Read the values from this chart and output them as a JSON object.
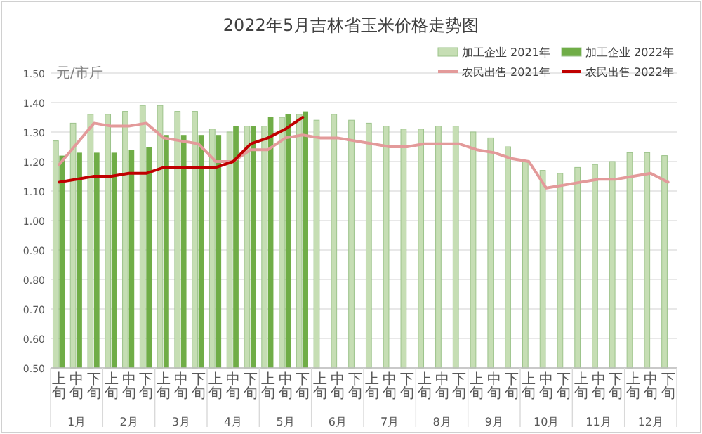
{
  "chart_data": {
    "type": "bar",
    "title": "2022年5月吉林省玉米价格走势图",
    "ylabel": "元/市斤",
    "categories": [
      "上旬",
      "中旬",
      "下旬",
      "上旬",
      "中旬",
      "下旬",
      "上旬",
      "中旬",
      "下旬",
      "上旬",
      "中旬",
      "下旬",
      "上旬",
      "中旬",
      "下旬",
      "上旬",
      "中旬",
      "下旬",
      "上旬",
      "中旬",
      "下旬",
      "上旬",
      "中旬",
      "下旬",
      "上旬",
      "中旬",
      "下旬",
      "上旬",
      "中旬",
      "下旬",
      "上旬",
      "中旬",
      "下旬",
      "上旬",
      "中旬",
      "下旬"
    ],
    "annotations": [
      "1月",
      "2月",
      "3月",
      "4月",
      "5月",
      "6月",
      "7月",
      "8月",
      "9月",
      "10月",
      "11月",
      "12月"
    ],
    "series": [
      {
        "name": "加工企业 2021年",
        "color": "#c6deb4",
        "values": [
          1.27,
          1.33,
          1.36,
          1.36,
          1.37,
          1.39,
          1.39,
          1.37,
          1.37,
          1.31,
          1.3,
          1.32,
          1.32,
          1.35,
          1.36,
          1.34,
          1.36,
          1.34,
          1.33,
          1.32,
          1.31,
          1.31,
          1.32,
          1.32,
          1.3,
          1.28,
          1.25,
          1.2,
          1.17,
          1.16,
          1.18,
          1.19,
          1.2,
          1.23,
          1.23,
          1.22
        ]
      },
      {
        "name": "加工企业 2022年",
        "color": "#70ad47",
        "values": [
          1.22,
          1.23,
          1.23,
          1.23,
          1.24,
          1.25,
          1.29,
          1.29,
          1.29,
          1.29,
          1.32,
          1.32,
          1.35,
          1.36,
          1.37,
          null,
          null,
          null,
          null,
          null,
          null,
          null,
          null,
          null,
          null,
          null,
          null,
          null,
          null,
          null,
          null,
          null,
          null,
          null,
          null,
          null
        ]
      },
      {
        "name": "农民出售 2021年",
        "type": "line",
        "color": "#e39a9a",
        "values": [
          1.19,
          1.26,
          1.33,
          1.32,
          1.32,
          1.33,
          1.28,
          1.27,
          1.26,
          1.2,
          1.2,
          1.24,
          1.24,
          1.28,
          1.29,
          1.28,
          1.28,
          1.27,
          1.26,
          1.25,
          1.25,
          1.26,
          1.26,
          1.26,
          1.24,
          1.23,
          1.21,
          1.2,
          1.11,
          1.12,
          1.13,
          1.14,
          1.14,
          1.15,
          1.16,
          1.13
        ]
      },
      {
        "name": "农民出售 2022年",
        "type": "line",
        "color": "#c00000",
        "values": [
          1.13,
          1.14,
          1.15,
          1.15,
          1.16,
          1.16,
          1.18,
          1.18,
          1.18,
          1.18,
          1.2,
          1.26,
          1.28,
          1.31,
          1.35,
          null,
          null,
          null,
          null,
          null,
          null,
          null,
          null,
          null,
          null,
          null,
          null,
          null,
          null,
          null,
          null,
          null,
          null,
          null,
          null,
          null
        ]
      }
    ],
    "ylim": [
      0.5,
      1.5
    ],
    "yticks": [
      {
        "value": 0.5,
        "label": "0.50"
      },
      {
        "value": 0.6,
        "label": "0.60"
      },
      {
        "value": 0.7,
        "label": "0.70"
      },
      {
        "value": 0.8,
        "label": "0.80"
      },
      {
        "value": 0.9,
        "label": "0.90"
      },
      {
        "value": 1.0,
        "label": "1.00"
      },
      {
        "value": 1.1,
        "label": "1.10"
      },
      {
        "value": 1.2,
        "label": "1.20"
      },
      {
        "value": 1.3,
        "label": "1.30"
      },
      {
        "value": 1.4,
        "label": "1.40"
      },
      {
        "value": 1.5,
        "label": "1.50"
      }
    ],
    "grid": "y",
    "legend": "top right"
  }
}
